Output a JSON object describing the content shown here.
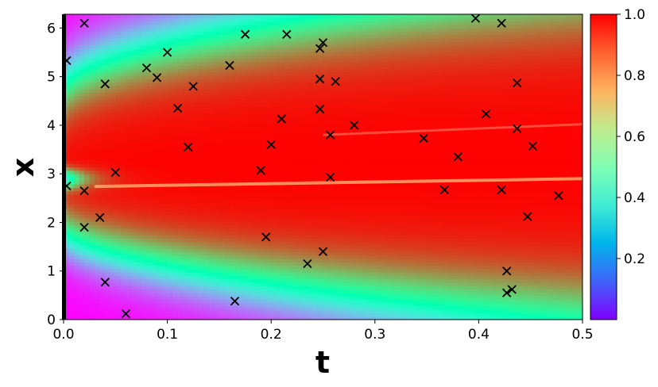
{
  "chart_data": {
    "type": "heatmap",
    "xlabel": "t",
    "ylabel": "x",
    "xlim": [
      0,
      0.5
    ],
    "ylim": [
      0,
      6.283
    ],
    "x_ticks": [
      "0.0",
      "0.1",
      "0.2",
      "0.3",
      "0.4",
      "0.5"
    ],
    "x_tick_values": [
      0,
      0.1,
      0.2,
      0.3,
      0.4,
      0.5
    ],
    "y_ticks": [
      "0",
      "1",
      "2",
      "3",
      "4",
      "5",
      "6"
    ],
    "y_tick_values": [
      0,
      1,
      2,
      3,
      4,
      5,
      6
    ],
    "colorbar": {
      "colormap": "rainbow",
      "range": [
        0,
        1
      ],
      "ticks": [
        "0.2",
        "0.4",
        "0.6",
        "0.8",
        "1.0"
      ],
      "tick_values": [
        0.2,
        0.4,
        0.6,
        0.8,
        1.0
      ]
    },
    "marker_color": "#000000",
    "markers": [
      {
        "t": 0.003,
        "x": 5.33
      },
      {
        "t": 0.02,
        "x": 6.1
      },
      {
        "t": 0.04,
        "x": 4.85
      },
      {
        "t": 0.08,
        "x": 5.18
      },
      {
        "t": 0.09,
        "x": 4.98
      },
      {
        "t": 0.1,
        "x": 5.5
      },
      {
        "t": 0.125,
        "x": 4.8
      },
      {
        "t": 0.11,
        "x": 4.35
      },
      {
        "t": 0.16,
        "x": 5.23
      },
      {
        "t": 0.175,
        "x": 5.87
      },
      {
        "t": 0.215,
        "x": 5.87
      },
      {
        "t": 0.25,
        "x": 5.7
      },
      {
        "t": 0.247,
        "x": 5.58
      },
      {
        "t": 0.247,
        "x": 4.95
      },
      {
        "t": 0.262,
        "x": 4.9
      },
      {
        "t": 0.247,
        "x": 4.33
      },
      {
        "t": 0.21,
        "x": 4.13
      },
      {
        "t": 0.257,
        "x": 3.8
      },
      {
        "t": 0.28,
        "x": 4.0
      },
      {
        "t": 0.2,
        "x": 3.6
      },
      {
        "t": 0.12,
        "x": 3.55
      },
      {
        "t": 0.05,
        "x": 3.03
      },
      {
        "t": 0.19,
        "x": 3.07
      },
      {
        "t": 0.257,
        "x": 2.93
      },
      {
        "t": 0.003,
        "x": 2.75
      },
      {
        "t": 0.02,
        "x": 2.65
      },
      {
        "t": 0.035,
        "x": 2.1
      },
      {
        "t": 0.02,
        "x": 1.9
      },
      {
        "t": 0.195,
        "x": 1.7
      },
      {
        "t": 0.235,
        "x": 1.15
      },
      {
        "t": 0.25,
        "x": 1.4
      },
      {
        "t": 0.04,
        "x": 0.77
      },
      {
        "t": 0.06,
        "x": 0.12
      },
      {
        "t": 0.165,
        "x": 0.38
      },
      {
        "t": 0.397,
        "x": 6.2
      },
      {
        "t": 0.422,
        "x": 6.1
      },
      {
        "t": 0.437,
        "x": 4.87
      },
      {
        "t": 0.407,
        "x": 4.23
      },
      {
        "t": 0.437,
        "x": 3.93
      },
      {
        "t": 0.347,
        "x": 3.73
      },
      {
        "t": 0.452,
        "x": 3.57
      },
      {
        "t": 0.38,
        "x": 3.35
      },
      {
        "t": 0.367,
        "x": 2.67
      },
      {
        "t": 0.422,
        "x": 2.67
      },
      {
        "t": 0.477,
        "x": 2.55
      },
      {
        "t": 0.447,
        "x": 2.12
      },
      {
        "t": 0.427,
        "x": 1.0
      },
      {
        "t": 0.432,
        "x": 0.62
      },
      {
        "t": 0.427,
        "x": 0.55
      }
    ]
  }
}
